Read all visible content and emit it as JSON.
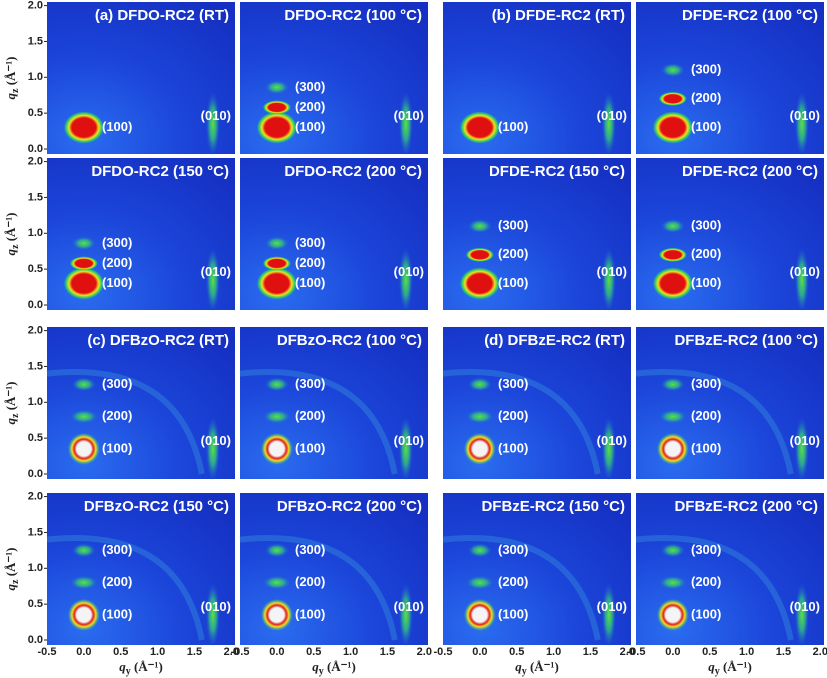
{
  "y_axis": {
    "title": {
      "symbol": "q",
      "subscript": "z",
      "unit": " (Å⁻¹)"
    },
    "ticks": [
      "0.0",
      "0.5",
      "1.0",
      "1.5",
      "2.0"
    ]
  },
  "x_axis": {
    "title": {
      "symbol": "q",
      "subscript": "y",
      "unit": " (Å⁻¹)"
    },
    "ticks": [
      "-0.5",
      "0.0",
      "0.5",
      "1.0",
      "1.5",
      "2.0"
    ]
  },
  "panels": [
    {
      "title": "(a) DFDO-RC2 (RT)",
      "peaks": [
        "(100)"
      ],
      "side_peak": "(010)"
    },
    {
      "title": "DFDO-RC2 (100 °C)",
      "peaks": [
        "(100)",
        "(200)",
        "(300)"
      ],
      "side_peak": "(010)"
    },
    {
      "title": "(b) DFDE-RC2 (RT)",
      "peaks": [
        "(100)"
      ],
      "side_peak": "(010)"
    },
    {
      "title": "DFDE-RC2 (100 °C)",
      "peaks": [
        "(100)",
        "(200)",
        "(300)"
      ],
      "side_peak": "(010)"
    },
    {
      "title": "DFDO-RC2 (150 °C)",
      "peaks": [
        "(100)",
        "(200)",
        "(300)"
      ],
      "side_peak": "(010)"
    },
    {
      "title": "DFDO-RC2 (200 °C)",
      "peaks": [
        "(100)",
        "(200)",
        "(300)"
      ],
      "side_peak": "(010)"
    },
    {
      "title": "DFDE-RC2 (150 °C)",
      "peaks": [
        "(100)",
        "(200)",
        "(300)"
      ],
      "side_peak": "(010)"
    },
    {
      "title": "DFDE-RC2 (200 °C)",
      "peaks": [
        "(100)",
        "(200)",
        "(300)"
      ],
      "side_peak": "(010)"
    },
    {
      "title": "(c) DFBzO-RC2 (RT)",
      "peaks": [
        "(100)",
        "(200)",
        "(300)"
      ],
      "side_peak": "(010)"
    },
    {
      "title": "DFBzO-RC2 (100 °C)",
      "peaks": [
        "(100)",
        "(200)",
        "(300)"
      ],
      "side_peak": "(010)"
    },
    {
      "title": "(d) DFBzE-RC2 (RT)",
      "peaks": [
        "(100)",
        "(200)",
        "(300)"
      ],
      "side_peak": "(010)"
    },
    {
      "title": "DFBzE-RC2 (100 °C)",
      "peaks": [
        "(100)",
        "(200)",
        "(300)"
      ],
      "side_peak": "(010)"
    },
    {
      "title": "DFBzO-RC2 (150 °C)",
      "peaks": [
        "(100)",
        "(200)",
        "(300)"
      ],
      "side_peak": "(010)"
    },
    {
      "title": "DFBzO-RC2 (200 °C)",
      "peaks": [
        "(100)",
        "(200)",
        "(300)"
      ],
      "side_peak": "(010)"
    },
    {
      "title": "DFBzE-RC2 (150 °C)",
      "peaks": [
        "(100)",
        "(200)",
        "(300)"
      ],
      "side_peak": "(010)"
    },
    {
      "title": "DFBzE-RC2 (200 °C)",
      "peaks": [
        "(100)",
        "(200)",
        "(300)"
      ],
      "side_peak": "(010)"
    }
  ]
}
